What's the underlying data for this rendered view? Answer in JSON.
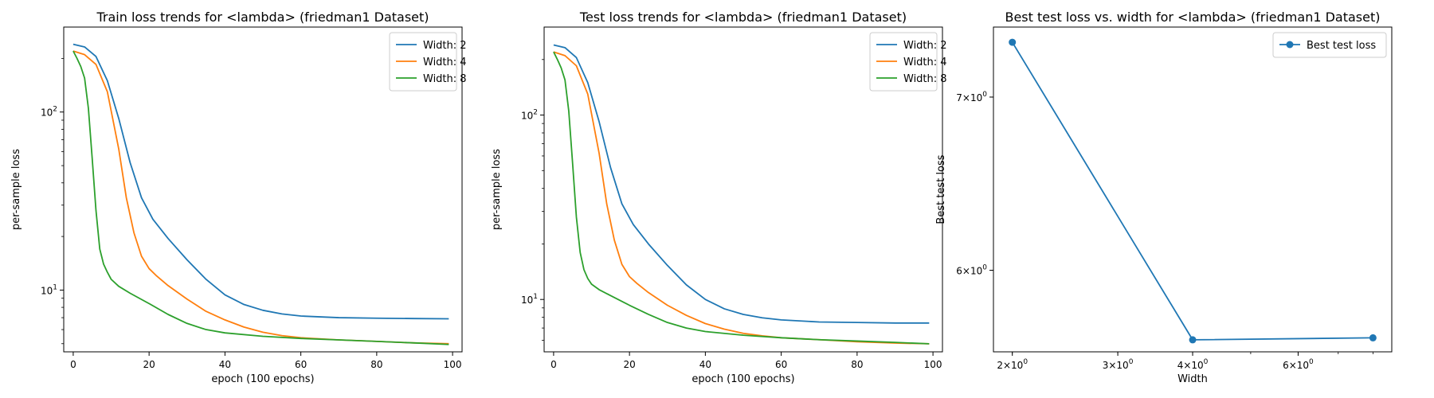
{
  "chart_data": [
    {
      "type": "line",
      "title": "Train loss trends for <lambda> (friedman1 Dataset)",
      "xlabel": "epoch (100 epochs)",
      "ylabel": "per-sample loss",
      "xlim": [
        -2.5,
        102.5
      ],
      "ylim": [
        4.5,
        300
      ],
      "yscale": "log",
      "x_ticks": [
        0,
        20,
        40,
        60,
        80,
        100
      ],
      "y_ticks": [
        {
          "value": 10,
          "label": "10^1"
        },
        {
          "value": 100,
          "label": "10^2"
        }
      ],
      "legend": "top-right",
      "series": [
        {
          "name": "Width: 2",
          "color": "#1f77b4",
          "x": [
            0,
            3,
            6,
            9,
            12,
            15,
            18,
            21,
            25,
            30,
            35,
            40,
            45,
            50,
            55,
            60,
            70,
            80,
            90,
            99
          ],
          "y": [
            240,
            232,
            205,
            150,
            92,
            52,
            33,
            25,
            19.5,
            14.8,
            11.5,
            9.4,
            8.3,
            7.7,
            7.35,
            7.15,
            7.0,
            6.95,
            6.92,
            6.9
          ]
        },
        {
          "name": "Width: 4",
          "color": "#ff7f0e",
          "x": [
            0,
            3,
            6,
            9,
            12,
            14,
            16,
            18,
            20,
            22,
            25,
            30,
            35,
            40,
            45,
            50,
            55,
            60,
            70,
            80,
            90,
            99
          ],
          "y": [
            220,
            210,
            185,
            130,
            62,
            33,
            21,
            15.5,
            13.2,
            12.0,
            10.6,
            8.9,
            7.6,
            6.8,
            6.2,
            5.8,
            5.55,
            5.4,
            5.25,
            5.15,
            5.05,
            5.0
          ]
        },
        {
          "name": "Width: 8",
          "color": "#2ca02c",
          "x": [
            0,
            1,
            2,
            3,
            4,
            5,
            6,
            7,
            8,
            9,
            10,
            12,
            15,
            20,
            25,
            30,
            35,
            40,
            50,
            60,
            70,
            80,
            90,
            99
          ],
          "y": [
            220,
            200,
            180,
            155,
            105,
            55,
            28,
            17,
            14,
            12.6,
            11.5,
            10.5,
            9.6,
            8.4,
            7.3,
            6.5,
            6.0,
            5.75,
            5.5,
            5.35,
            5.25,
            5.15,
            5.05,
            4.95
          ]
        }
      ]
    },
    {
      "type": "line",
      "title": "Test loss trends for <lambda> (friedman1 Dataset)",
      "xlabel": "epoch (100 epochs)",
      "ylabel": "per-sample loss",
      "xlim": [
        -2.5,
        102.5
      ],
      "ylim": [
        5.2,
        300
      ],
      "yscale": "log",
      "x_ticks": [
        0,
        20,
        40,
        60,
        80,
        100
      ],
      "y_ticks": [
        {
          "value": 10,
          "label": "10^1"
        },
        {
          "value": 100,
          "label": "10^2"
        }
      ],
      "legend": "top-right",
      "series": [
        {
          "name": "Width: 2",
          "color": "#1f77b4",
          "x": [
            0,
            3,
            6,
            9,
            12,
            15,
            18,
            21,
            25,
            30,
            35,
            40,
            45,
            50,
            55,
            60,
            70,
            80,
            90,
            99
          ],
          "y": [
            240,
            232,
            205,
            150,
            92,
            52,
            33,
            25.5,
            20,
            15.3,
            12,
            10,
            8.9,
            8.3,
            7.95,
            7.75,
            7.55,
            7.5,
            7.45,
            7.45
          ]
        },
        {
          "name": "Width: 4",
          "color": "#ff7f0e",
          "x": [
            0,
            3,
            6,
            9,
            12,
            14,
            16,
            18,
            20,
            22,
            25,
            30,
            35,
            40,
            45,
            50,
            55,
            60,
            70,
            80,
            90,
            99
          ],
          "y": [
            220,
            210,
            185,
            130,
            62,
            33,
            21,
            15.5,
            13.3,
            12.2,
            10.9,
            9.3,
            8.2,
            7.4,
            6.9,
            6.55,
            6.35,
            6.2,
            6.05,
            5.9,
            5.8,
            5.75
          ]
        },
        {
          "name": "Width: 8",
          "color": "#2ca02c",
          "x": [
            0,
            1,
            2,
            3,
            4,
            5,
            6,
            7,
            8,
            9,
            10,
            12,
            15,
            20,
            25,
            30,
            35,
            40,
            50,
            60,
            70,
            80,
            90,
            99
          ],
          "y": [
            220,
            200,
            180,
            155,
            105,
            55,
            28,
            18,
            14.5,
            13,
            12.1,
            11.3,
            10.5,
            9.3,
            8.3,
            7.5,
            7.0,
            6.7,
            6.4,
            6.2,
            6.05,
            5.95,
            5.85,
            5.75
          ]
        }
      ]
    },
    {
      "type": "line",
      "title": "Best test loss vs. width for <lambda> (friedman1 Dataset)",
      "xlabel": "Width",
      "ylabel": "Best test loss",
      "xscale": "log",
      "yscale": "log",
      "xlim": [
        1.86,
        8.6
      ],
      "ylim": [
        5.58,
        7.45
      ],
      "x_ticks": [
        {
          "value": 2,
          "label": "2×10^0"
        },
        {
          "value": 3,
          "label": "3×10^0"
        },
        {
          "value": 4,
          "label": "4×10^0"
        },
        {
          "value": 6,
          "label": "6×10^0"
        }
      ],
      "y_ticks": [
        {
          "value": 6,
          "label": "6×10^0"
        },
        {
          "value": 7,
          "label": "7×10^0"
        }
      ],
      "legend": "top-right",
      "series": [
        {
          "name": "Best test loss",
          "color": "#1f77b4",
          "marker": "circle",
          "x": [
            2,
            4,
            8
          ],
          "y": [
            7.35,
            5.64,
            5.65
          ]
        }
      ]
    }
  ]
}
